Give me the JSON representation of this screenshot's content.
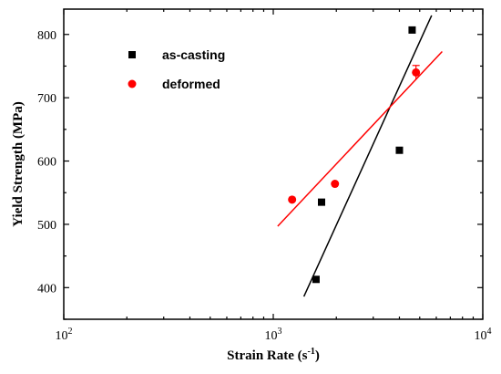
{
  "chart_data": {
    "type": "scatter",
    "xlabel": "Strain Rate (s",
    "xlabel_sup": "-1",
    "xlabel_end": ")",
    "ylabel": "Yield Strength (MPa)",
    "x_scale": "log",
    "xlim": [
      100,
      10000
    ],
    "ylim": [
      350,
      840
    ],
    "x_ticks": [
      {
        "value": 100,
        "base": "10",
        "exp": "2"
      },
      {
        "value": 1000,
        "base": "10",
        "exp": "3"
      },
      {
        "value": 10000,
        "base": "10",
        "exp": "4"
      }
    ],
    "y_ticks": [
      400,
      500,
      600,
      700,
      800
    ],
    "grid": false,
    "legend_position": "top-left",
    "series": [
      {
        "name": "as-casting",
        "marker": "square",
        "color": "#000000",
        "points": [
          {
            "x": 1600,
            "y": 413
          },
          {
            "x": 1700,
            "y": 535
          },
          {
            "x": 4000,
            "y": 617
          },
          {
            "x": 4600,
            "y": 807
          }
        ],
        "fit_line": {
          "x": [
            1400,
            5700
          ],
          "y": [
            386,
            830
          ]
        }
      },
      {
        "name": "deformed",
        "marker": "circle",
        "color": "#ff0000",
        "points": [
          {
            "x": 1230,
            "y": 539
          },
          {
            "x": 1970,
            "y": 564
          },
          {
            "x": 4800,
            "y": 740,
            "err": 11
          }
        ],
        "fit_line": {
          "x": [
            1050,
            6400
          ],
          "y": [
            497,
            773
          ]
        }
      }
    ]
  }
}
